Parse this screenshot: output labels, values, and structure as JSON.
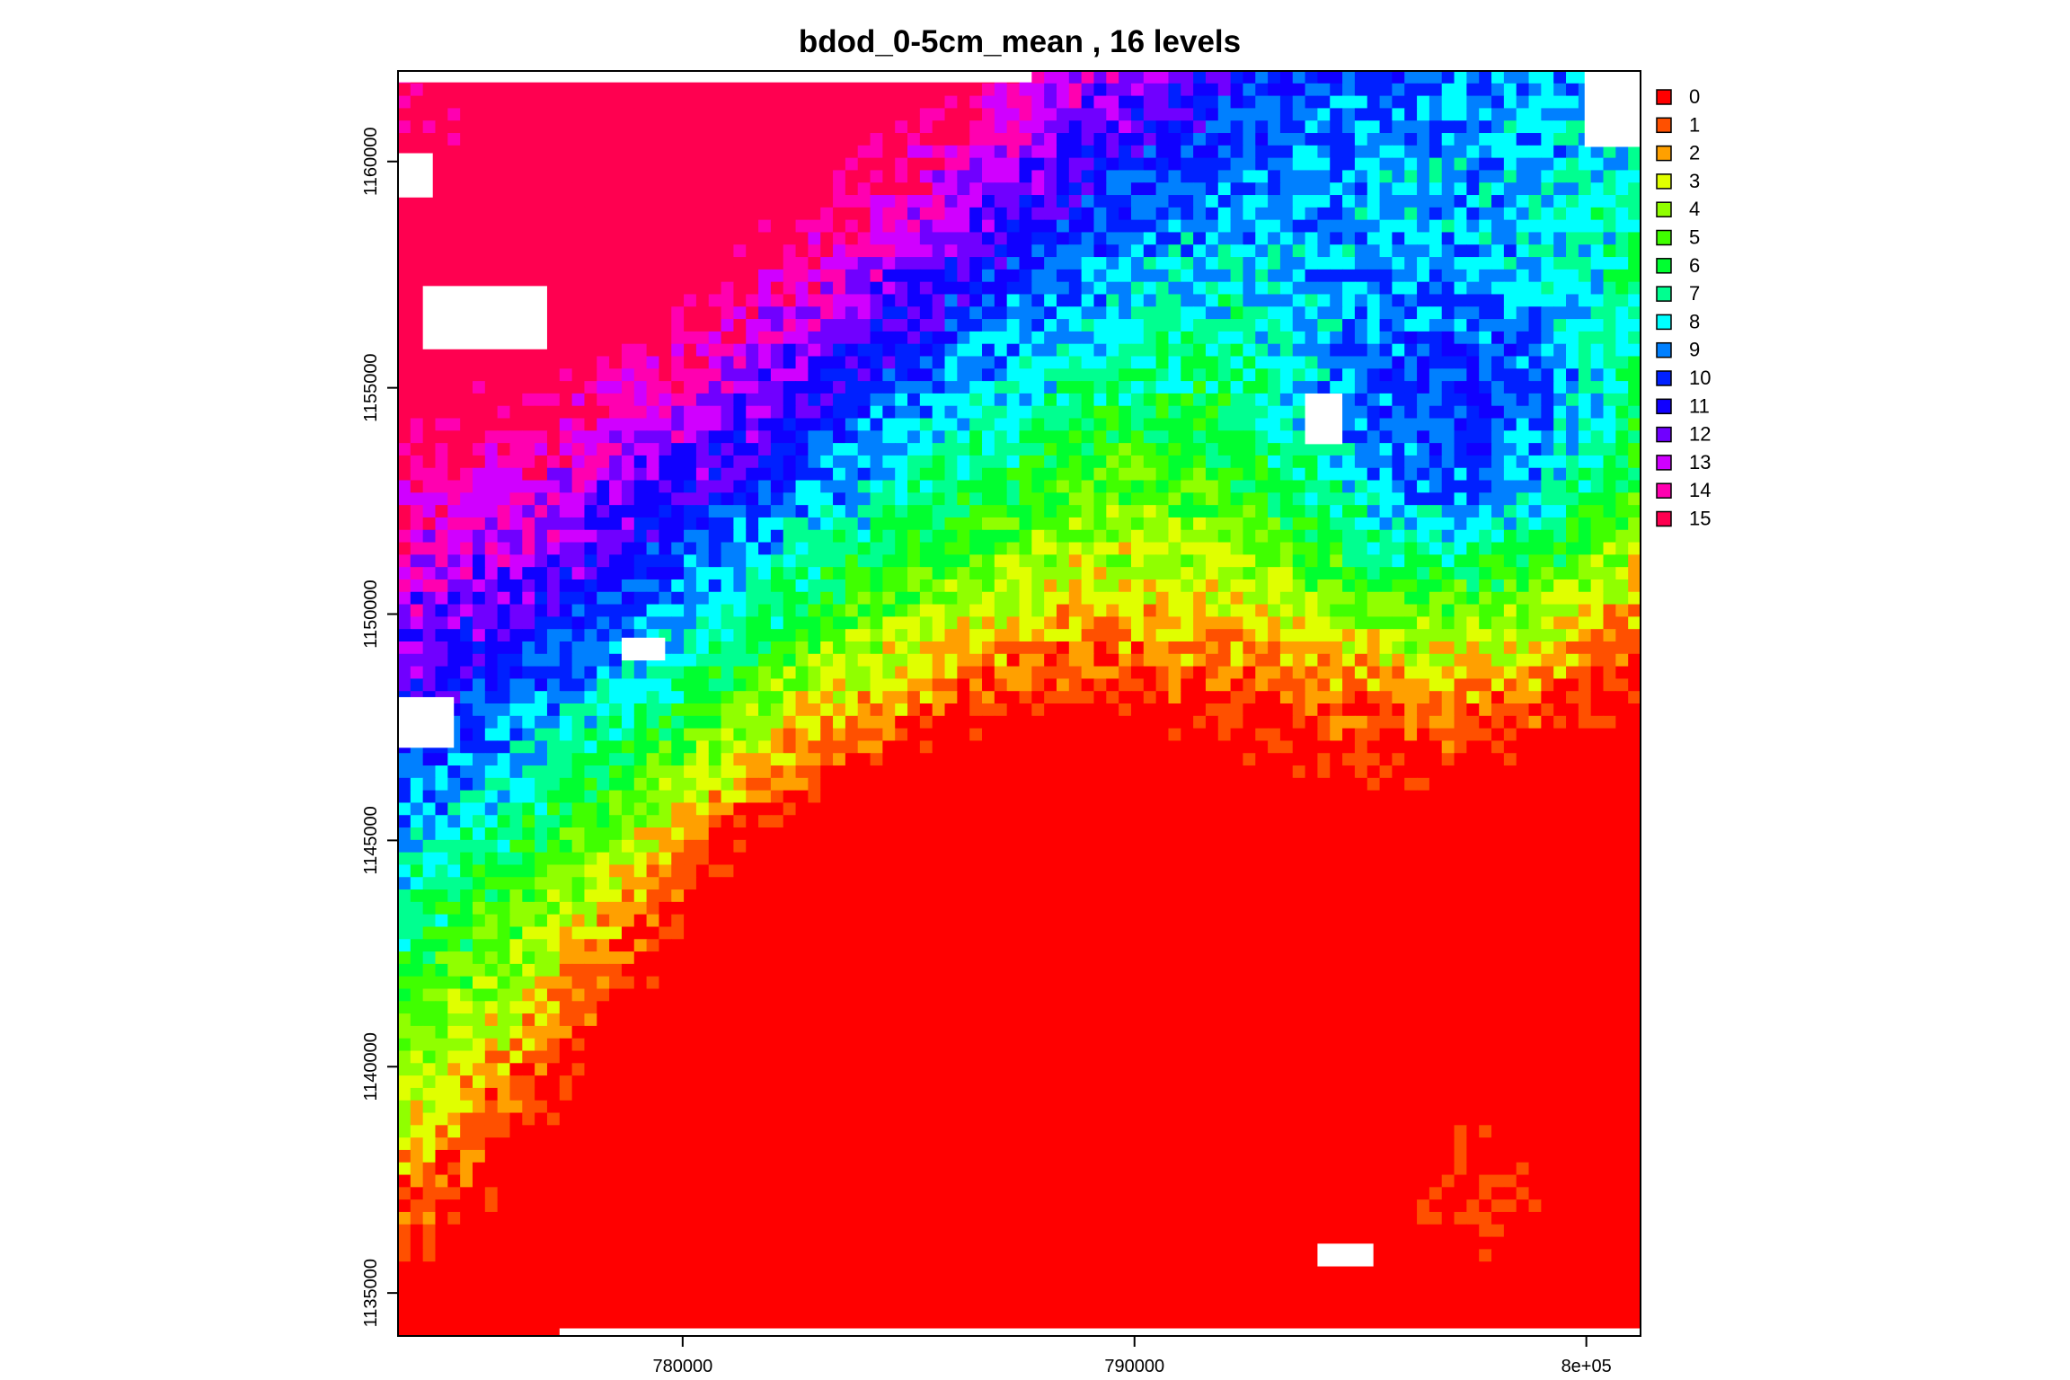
{
  "chart_data": {
    "type": "heatmap",
    "title": "bdod_0-5cm_mean , 16 levels",
    "xlabel": "",
    "ylabel": "",
    "x_ticks": [
      {
        "value": 780000,
        "label": "780000"
      },
      {
        "value": 790000,
        "label": "790000"
      },
      {
        "value": 800000,
        "label": "8e+05"
      }
    ],
    "y_ticks": [
      {
        "value": 1135000,
        "label": "1135000"
      },
      {
        "value": 1140000,
        "label": "1140000"
      },
      {
        "value": 1145000,
        "label": "1145000"
      },
      {
        "value": 1150000,
        "label": "1150000"
      },
      {
        "value": 1155000,
        "label": "1155000"
      },
      {
        "value": 1160000,
        "label": "1160000"
      }
    ],
    "xlim": [
      773700,
      801200
    ],
    "ylim": [
      1134050,
      1162000
    ],
    "grid": false,
    "legend_position": "right",
    "legend": [
      {
        "label": "0",
        "color": "#FF0000"
      },
      {
        "label": "1",
        "color": "#FF5000"
      },
      {
        "label": "2",
        "color": "#FFA000"
      },
      {
        "label": "3",
        "color": "#E0FF00"
      },
      {
        "label": "4",
        "color": "#90FF00"
      },
      {
        "label": "5",
        "color": "#40FF00"
      },
      {
        "label": "6",
        "color": "#00FF30"
      },
      {
        "label": "7",
        "color": "#00FF90"
      },
      {
        "label": "8",
        "color": "#00FFFF"
      },
      {
        "label": "9",
        "color": "#0080FF"
      },
      {
        "label": "10",
        "color": "#0020FF"
      },
      {
        "label": "11",
        "color": "#1000FF"
      },
      {
        "label": "12",
        "color": "#7000FF"
      },
      {
        "label": "13",
        "color": "#D000FF"
      },
      {
        "label": "14",
        "color": "#FF00B0"
      },
      {
        "label": "15",
        "color": "#FF0050"
      }
    ],
    "white_color": "#FFFFFF"
  }
}
